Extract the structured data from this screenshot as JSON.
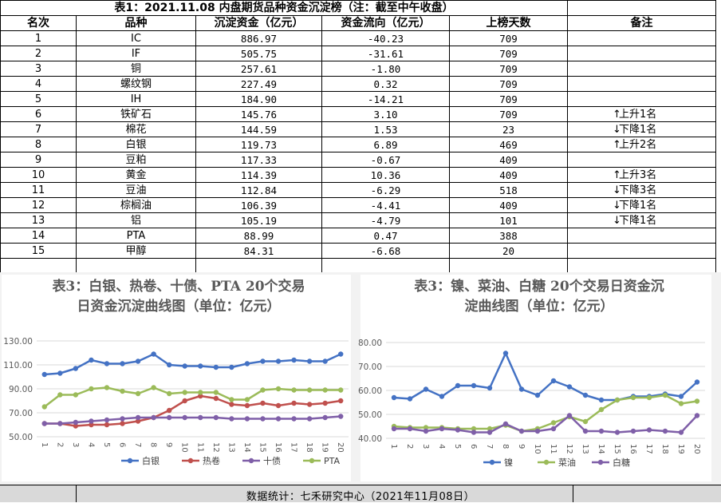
{
  "table": {
    "title": "表1：2021.11.08 内盘期货品种资金沉淀榜（注：截至中午收盘）",
    "headers": [
      "名次",
      "品种",
      "沉淀资金（亿元）",
      "资金流向（亿元）",
      "上榜天数",
      "备注"
    ],
    "rows": [
      {
        "rank": "1",
        "name": "IC",
        "fund": "886.97",
        "flow": "-40.23",
        "days": "709",
        "arrow": "",
        "note": ""
      },
      {
        "rank": "2",
        "name": "IF",
        "fund": "505.75",
        "flow": "-31.61",
        "days": "709",
        "arrow": "",
        "note": ""
      },
      {
        "rank": "3",
        "name": "铜",
        "fund": "257.61",
        "flow": "-1.80",
        "days": "709",
        "arrow": "",
        "note": ""
      },
      {
        "rank": "4",
        "name": "螺纹钢",
        "fund": "227.49",
        "flow": "0.32",
        "days": "709",
        "arrow": "",
        "note": ""
      },
      {
        "rank": "5",
        "name": "IH",
        "fund": "184.90",
        "flow": "-14.21",
        "days": "709",
        "arrow": "",
        "note": ""
      },
      {
        "rank": "6",
        "name": "铁矿石",
        "fund": "145.76",
        "flow": "3.10",
        "days": "709",
        "arrow": "↑",
        "note": "上升1名"
      },
      {
        "rank": "7",
        "name": "棉花",
        "fund": "144.59",
        "flow": "1.53",
        "days": "23",
        "arrow": "↓",
        "note": "下降1名"
      },
      {
        "rank": "8",
        "name": "白银",
        "fund": "119.73",
        "flow": "6.89",
        "days": "469",
        "arrow": "↑",
        "note": "上升2名"
      },
      {
        "rank": "9",
        "name": "豆粕",
        "fund": "117.33",
        "flow": "-0.67",
        "days": "409",
        "arrow": "",
        "note": ""
      },
      {
        "rank": "10",
        "name": "黄金",
        "fund": "114.39",
        "flow": "10.36",
        "days": "409",
        "arrow": "↑",
        "note": "上升3名"
      },
      {
        "rank": "11",
        "name": "豆油",
        "fund": "112.84",
        "flow": "-6.29",
        "days": "518",
        "arrow": "↓",
        "note": "下降3名"
      },
      {
        "rank": "12",
        "name": "棕榈油",
        "fund": "106.39",
        "flow": "-4.41",
        "days": "409",
        "arrow": "↓",
        "note": "下降1名"
      },
      {
        "rank": "13",
        "name": "铝",
        "fund": "105.19",
        "flow": "-4.79",
        "days": "101",
        "arrow": "↓",
        "note": "下降1名"
      },
      {
        "rank": "14",
        "name": "PTA",
        "fund": "88.99",
        "flow": "0.47",
        "days": "388",
        "arrow": "",
        "note": ""
      },
      {
        "rank": "15",
        "name": "甲醇",
        "fund": "84.31",
        "flow": "-6.68",
        "days": "20",
        "arrow": "",
        "note": ""
      }
    ]
  },
  "charts": [
    {
      "title_line1": "表3：白银、热卷、十债、PTA 20个交易",
      "title_line2": "日资金沉淀曲线图（单位：亿元）"
    },
    {
      "title_line1": "表3：镍、菜油、白糖 20个交易日资金沉",
      "title_line2": "淀曲线图（单位：亿元）"
    }
  ],
  "chart_data": [
    {
      "type": "line",
      "x": [
        "1",
        "2",
        "3",
        "4",
        "5",
        "6",
        "7",
        "8",
        "9",
        "10",
        "11",
        "12",
        "13",
        "14",
        "15",
        "16",
        "17",
        "18",
        "19",
        "20"
      ],
      "yticks": [
        "130.00",
        "110.00",
        "90.00",
        "70.00",
        "50.00"
      ],
      "ylim": [
        50,
        130
      ],
      "legend_position": "bottom",
      "series": [
        {
          "name": "白银",
          "color": "#4472c4",
          "values": [
            102,
            103,
            107,
            114,
            111,
            111,
            113,
            119,
            110,
            109,
            109,
            108,
            108,
            111,
            113,
            113,
            114,
            113,
            113,
            119
          ]
        },
        {
          "name": "热卷",
          "color": "#c0504d",
          "values": [
            61,
            61,
            59,
            60,
            60,
            61,
            63,
            66,
            72,
            80,
            84,
            82,
            77,
            76,
            78,
            76,
            78,
            77,
            78,
            80
          ]
        },
        {
          "name": "十债",
          "color": "#7f5fa8",
          "values": [
            61,
            61,
            62,
            63,
            64,
            65,
            66,
            66,
            66,
            66,
            66,
            66,
            65,
            65,
            65,
            65,
            65,
            65,
            66,
            67
          ]
        },
        {
          "name": "PTA",
          "color": "#9bbb59",
          "values": [
            75,
            85,
            85,
            90,
            91,
            88,
            86,
            91,
            86,
            87,
            87,
            87,
            81,
            81,
            89,
            90,
            89,
            89,
            89,
            89
          ]
        }
      ]
    },
    {
      "type": "line",
      "x": [
        "1",
        "2",
        "3",
        "4",
        "5",
        "6",
        "7",
        "8",
        "9",
        "10",
        "11",
        "12",
        "13",
        "14",
        "15",
        "16",
        "17",
        "18",
        "19",
        "20"
      ],
      "yticks": [
        "80.00",
        "70.00",
        "60.00",
        "50.00",
        "40.00"
      ],
      "ylim": [
        40,
        80
      ],
      "legend_position": "bottom",
      "series": [
        {
          "name": "镍",
          "color": "#4472c4",
          "values": [
            57,
            56.5,
            60.5,
            57.5,
            62,
            62,
            61,
            75.5,
            60.5,
            58,
            64,
            61.5,
            58,
            56,
            56,
            57.5,
            57.5,
            58.5,
            57.5,
            63.5
          ]
        },
        {
          "name": "菜油",
          "color": "#9bbb59",
          "values": [
            45,
            44.5,
            44.5,
            44.5,
            44,
            44,
            44,
            45.5,
            43,
            44,
            46.5,
            49,
            47,
            52,
            56,
            57,
            57,
            58,
            54.5,
            55.5
          ]
        },
        {
          "name": "白糖",
          "color": "#7f5fa8",
          "values": [
            44,
            44,
            43,
            44,
            43.5,
            42.5,
            42.5,
            46,
            43,
            43,
            44,
            49.5,
            43,
            43,
            42.5,
            43,
            43.5,
            43,
            42.5,
            49.5
          ]
        }
      ]
    }
  ],
  "footer": {
    "text": "数据统计：七禾研究中心（2021年11月08日）"
  }
}
